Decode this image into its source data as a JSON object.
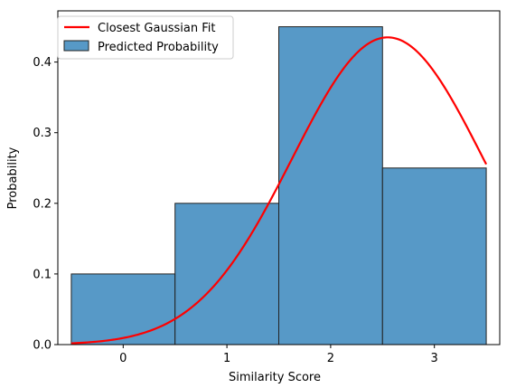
{
  "chart_data": {
    "type": "bar",
    "xlabel": "Similarity Score",
    "ylabel": "Probability",
    "xlim": [
      -0.63,
      3.63
    ],
    "ylim": [
      0,
      0.4725
    ],
    "xticks": [
      0,
      1,
      2,
      3
    ],
    "xtick_labels": [
      "0",
      "1",
      "2",
      "3"
    ],
    "yticks": [
      0.0,
      0.1,
      0.2,
      0.3,
      0.4
    ],
    "ytick_labels": [
      "0.0",
      "0.1",
      "0.2",
      "0.3",
      "0.4"
    ],
    "grid": false,
    "legend_position": "upper-left",
    "histogram": {
      "name": "Predicted Probability",
      "color": "#5799c7",
      "edge_color": "#222222",
      "bins": [
        {
          "x0": -0.5,
          "x1": 0.5,
          "value": 0.1
        },
        {
          "x0": 0.5,
          "x1": 1.5,
          "value": 0.2
        },
        {
          "x0": 1.5,
          "x1": 2.5,
          "value": 0.45
        },
        {
          "x0": 2.5,
          "x1": 3.5,
          "value": 0.25
        }
      ]
    },
    "gaussian_fit": {
      "name": "Closest Gaussian Fit",
      "color": "#ff0000",
      "mean": 2.55,
      "std": 0.92,
      "peak": 0.435,
      "x_range": [
        -0.5,
        3.5
      ]
    }
  }
}
